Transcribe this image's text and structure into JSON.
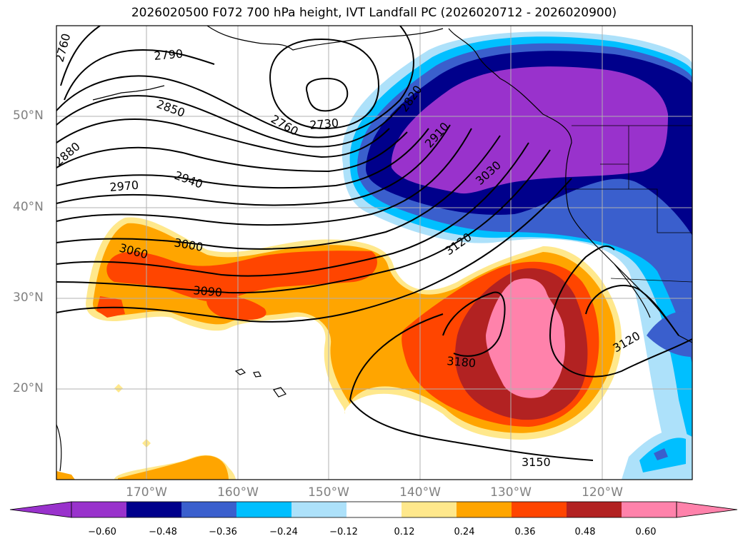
{
  "title": "2026020500 F072 700 hPa height, IVT Landfall PC (2026020712 - 2026020900)",
  "lat_labels": [
    "50°N",
    "40°N",
    "30°N",
    "20°N"
  ],
  "lon_labels": [
    "170°W",
    "160°W",
    "150°W",
    "140°W",
    "130°W",
    "120°W"
  ],
  "contour_labels": [
    "2760",
    "2790",
    "2850",
    "2880",
    "2970",
    "2940",
    "2760",
    "2730",
    "2820",
    "2910",
    "3030",
    "3060",
    "3000",
    "3090",
    "3120",
    "3180",
    "3120",
    "3150"
  ],
  "colorbar": {
    "colors": [
      "#9932CC",
      "#00008B",
      "#3A5FCD",
      "#00BFFF",
      "#ADE1FA",
      "#FFFFFF",
      "#FFE88C",
      "#FFA500",
      "#FF4500",
      "#B22222",
      "#FF82AB"
    ],
    "tick_labels": [
      "−0.60",
      "−0.48",
      "−0.36",
      "−0.24",
      "−0.12",
      "0.12",
      "0.24",
      "0.36",
      "0.48",
      "0.60"
    ]
  }
}
